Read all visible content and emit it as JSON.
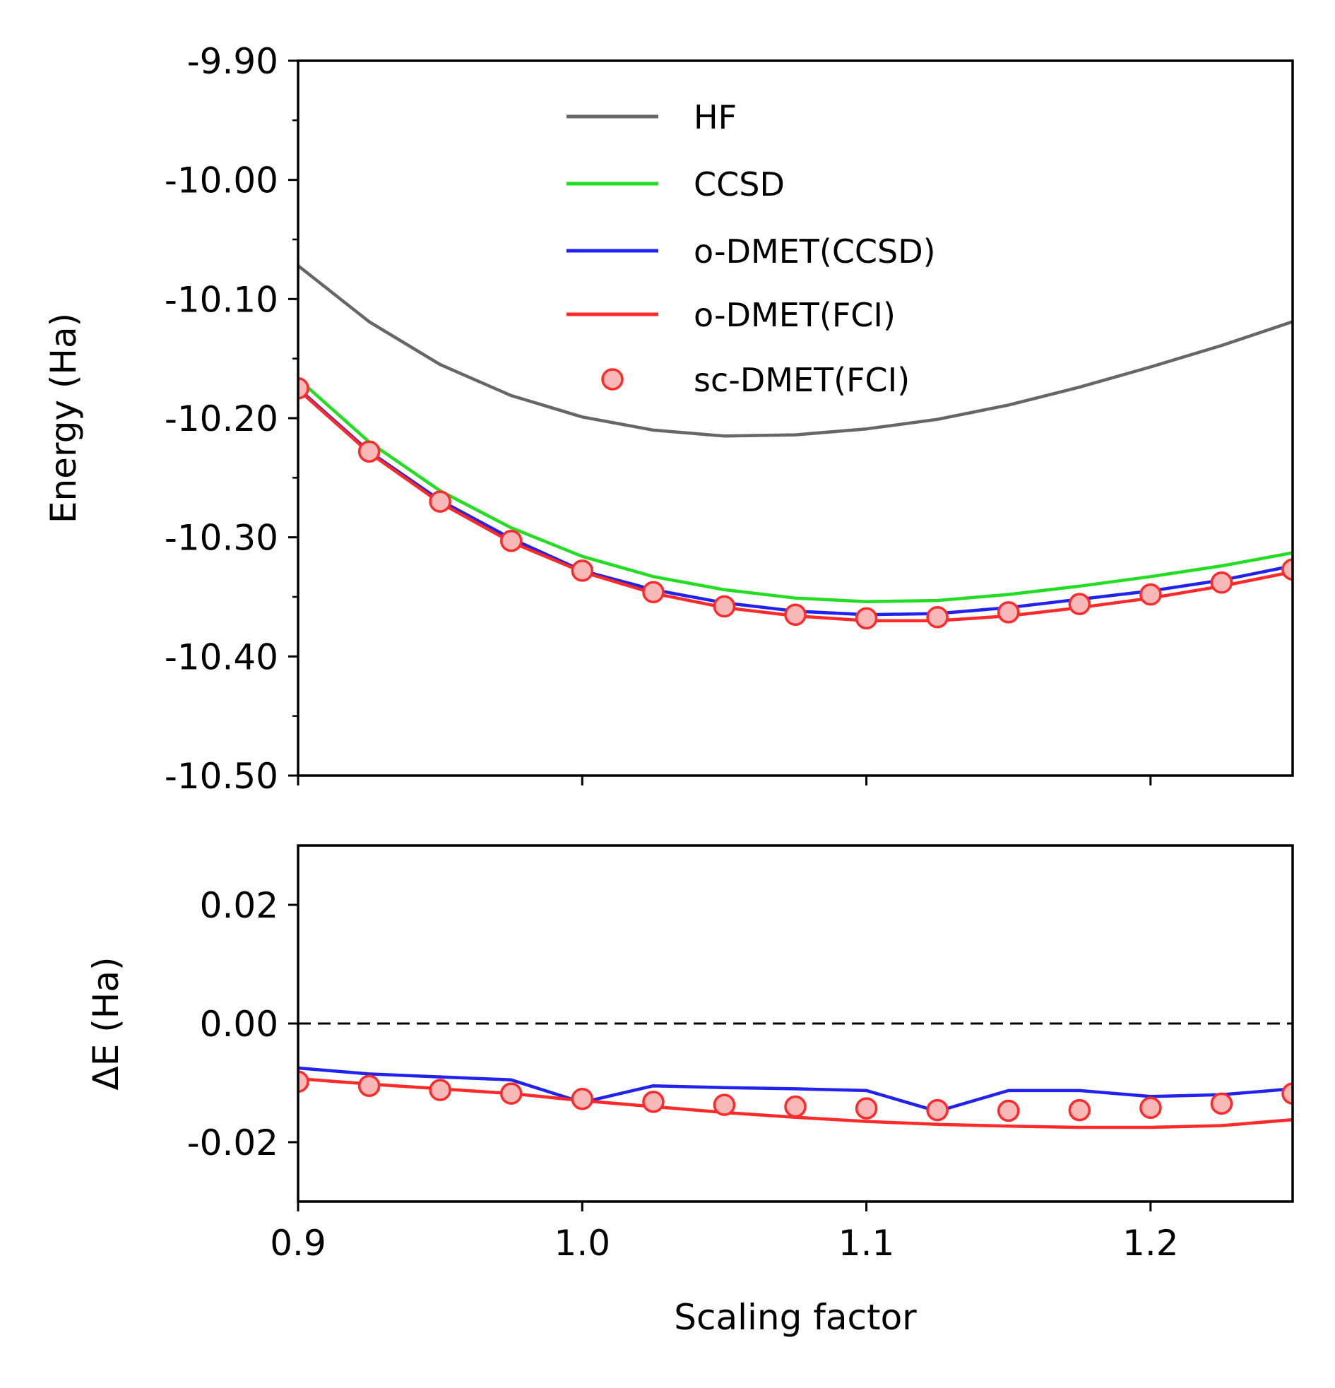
{
  "chart_data": [
    {
      "type": "line",
      "panel": "top",
      "title": "",
      "xlabel": "",
      "ylabel": "Energy (Ha)",
      "xlim": [
        0.9,
        1.25
      ],
      "ylim": [
        -10.5,
        -9.9
      ],
      "xticks": [
        0.9,
        1.0,
        1.1,
        1.2
      ],
      "yticks": [
        -9.9,
        -10.0,
        -10.1,
        -10.2,
        -10.3,
        -10.4,
        -10.5
      ],
      "ytick_labels": [
        "-9.90",
        "-10.00",
        "-10.10",
        "-10.20",
        "-10.30",
        "-10.40",
        "-10.50"
      ],
      "grid": false,
      "legend_position": "top-center",
      "x": [
        0.9,
        0.925,
        0.95,
        0.975,
        1.0,
        1.025,
        1.05,
        1.075,
        1.1,
        1.125,
        1.15,
        1.175,
        1.2,
        1.225,
        1.25
      ],
      "series": [
        {
          "name": "HF",
          "style": "line",
          "color": "#666666",
          "values": [
            -10.072,
            -10.119,
            -10.155,
            -10.181,
            -10.199,
            -10.21,
            -10.215,
            -10.214,
            -10.209,
            -10.201,
            -10.189,
            -10.174,
            -10.157,
            -10.139,
            -10.119
          ]
        },
        {
          "name": "CCSD",
          "style": "line",
          "color": "#22dd22",
          "values": [
            -10.167,
            -10.22,
            -10.261,
            -10.292,
            -10.316,
            -10.333,
            -10.344,
            -10.351,
            -10.354,
            -10.353,
            -10.348,
            -10.341,
            -10.333,
            -10.324,
            -10.313
          ]
        },
        {
          "name": "o-DMET(CCSD)",
          "style": "line",
          "color": "#2222ee",
          "values": [
            -10.175,
            -10.228,
            -10.269,
            -10.301,
            -10.328,
            -10.344,
            -10.355,
            -10.362,
            -10.365,
            -10.364,
            -10.359,
            -10.352,
            -10.345,
            -10.336,
            -10.324
          ]
        },
        {
          "name": "o-DMET(FCI)",
          "style": "line",
          "color": "#ff2a2a",
          "values": [
            -10.176,
            -10.229,
            -10.271,
            -10.304,
            -10.329,
            -10.347,
            -10.359,
            -10.366,
            -10.37,
            -10.37,
            -10.366,
            -10.359,
            -10.351,
            -10.341,
            -10.329
          ]
        },
        {
          "name": "sc-DMET(FCI)",
          "style": "marker",
          "color": "#ff2a2a",
          "fill": "#f8b8b8",
          "values": [
            -10.175,
            -10.228,
            -10.27,
            -10.303,
            -10.328,
            -10.346,
            -10.358,
            -10.365,
            -10.368,
            -10.367,
            -10.363,
            -10.356,
            -10.348,
            -10.338,
            -10.327
          ]
        }
      ]
    },
    {
      "type": "line",
      "panel": "bottom",
      "title": "",
      "xlabel": "Scaling factor",
      "ylabel": "ΔE (Ha)",
      "xlim": [
        0.9,
        1.25
      ],
      "ylim": [
        -0.03,
        0.03
      ],
      "xticks": [
        0.9,
        1.0,
        1.1,
        1.2
      ],
      "xtick_labels": [
        "0.9",
        "1.0",
        "1.1",
        "1.2"
      ],
      "yticks": [
        0.02,
        0.0,
        -0.02
      ],
      "ytick_labels": [
        "0.02",
        "0.00",
        "-0.02"
      ],
      "grid": false,
      "reference_line": {
        "y": 0.0,
        "style": "dashed",
        "color": "#000000"
      },
      "x": [
        0.9,
        0.925,
        0.95,
        0.975,
        1.0,
        1.025,
        1.05,
        1.075,
        1.1,
        1.125,
        1.15,
        1.175,
        1.2,
        1.225,
        1.25
      ],
      "series": [
        {
          "name": "o-DMET(CCSD)",
          "style": "line",
          "color": "#2222ee",
          "values": [
            -0.0075,
            -0.0085,
            -0.009,
            -0.0095,
            -0.0133,
            -0.0105,
            -0.0108,
            -0.011,
            -0.0113,
            -0.0148,
            -0.0113,
            -0.0113,
            -0.0123,
            -0.012,
            -0.011
          ]
        },
        {
          "name": "o-DMET(FCI)",
          "style": "line",
          "color": "#ff2a2a",
          "values": [
            -0.0093,
            -0.0102,
            -0.011,
            -0.0118,
            -0.013,
            -0.014,
            -0.015,
            -0.0158,
            -0.0165,
            -0.017,
            -0.0173,
            -0.0175,
            -0.0175,
            -0.0172,
            -0.0162
          ]
        },
        {
          "name": "sc-DMET(FCI)",
          "style": "marker",
          "color": "#ff2a2a",
          "fill": "#f8b8b8",
          "values": [
            -0.0098,
            -0.0105,
            -0.0112,
            -0.0118,
            -0.0127,
            -0.0132,
            -0.0137,
            -0.014,
            -0.0143,
            -0.0146,
            -0.0147,
            -0.0146,
            -0.0142,
            -0.0135,
            -0.0118
          ]
        }
      ]
    }
  ]
}
